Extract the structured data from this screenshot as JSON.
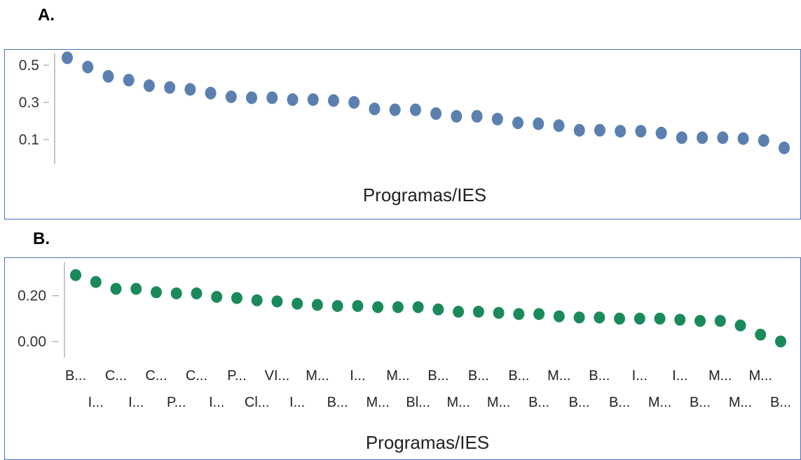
{
  "panels": {
    "a_label": "A.",
    "b_label": "B."
  },
  "chart_data": [
    {
      "type": "scatter",
      "xlabel": "Programas/IES",
      "ylabel": "",
      "ylim": [
        0.0,
        0.56
      ],
      "y_ticks": [
        "0.5",
        "0.3",
        "0.1"
      ],
      "y_tick_values": [
        0.5,
        0.3,
        0.1
      ],
      "color": "#5b80b0",
      "values": [
        0.54,
        0.49,
        0.44,
        0.42,
        0.39,
        0.38,
        0.37,
        0.35,
        0.33,
        0.325,
        0.325,
        0.315,
        0.315,
        0.31,
        0.3,
        0.265,
        0.26,
        0.26,
        0.24,
        0.225,
        0.225,
        0.21,
        0.19,
        0.185,
        0.175,
        0.15,
        0.15,
        0.145,
        0.145,
        0.135,
        0.11,
        0.11,
        0.11,
        0.105,
        0.095,
        0.055
      ]
    },
    {
      "type": "scatter",
      "xlabel": "Programas/IES",
      "ylabel": "",
      "ylim": [
        -0.02,
        0.32
      ],
      "y_ticks": [
        "0.20",
        "0.00"
      ],
      "y_tick_values": [
        0.2,
        0.0
      ],
      "color": "#1b8a5a",
      "categories_top": [
        "B...",
        "C...",
        "C...",
        "C...",
        "P...",
        "VI...",
        "M...",
        "I...",
        "M...",
        "B...",
        "B...",
        "B...",
        "M...",
        "B...",
        "I...",
        "I...",
        "M...",
        "M..."
      ],
      "categories_bottom": [
        "I...",
        "I...",
        "P...",
        "I...",
        "Cl...",
        "I...",
        "B...",
        "M...",
        "Bl...",
        "M...",
        "M...",
        "B...",
        "B...",
        "B...",
        "M...",
        "B...",
        "M...",
        "B..."
      ],
      "values": [
        0.29,
        0.26,
        0.23,
        0.23,
        0.215,
        0.21,
        0.21,
        0.195,
        0.19,
        0.18,
        0.175,
        0.165,
        0.16,
        0.155,
        0.155,
        0.15,
        0.15,
        0.15,
        0.14,
        0.13,
        0.13,
        0.125,
        0.12,
        0.12,
        0.11,
        0.105,
        0.105,
        0.1,
        0.1,
        0.1,
        0.095,
        0.09,
        0.09,
        0.07,
        0.03,
        0.0
      ]
    }
  ]
}
